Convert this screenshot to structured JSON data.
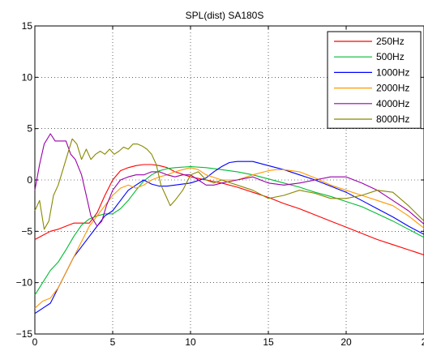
{
  "chart_data": {
    "type": "line",
    "title": "SPL(dist) SA180S",
    "xlabel": "",
    "ylabel": "",
    "xlim": [
      0,
      25
    ],
    "ylim": [
      -15,
      15
    ],
    "xticks": [
      "0",
      "5",
      "10",
      "15",
      "20",
      "2"
    ],
    "yticks": [
      "−15",
      "−10",
      "−5",
      "0",
      "5",
      "10",
      "15"
    ],
    "grid": true,
    "legend_position": "top-right",
    "series": [
      {
        "name": "250Hz",
        "color": "#ff0000",
        "x": [
          0,
          0.5,
          1,
          1.5,
          2,
          2.5,
          3,
          3.5,
          4,
          4.5,
          5,
          5.5,
          6,
          6.5,
          7,
          7.5,
          8,
          8.5,
          9,
          10,
          11,
          12,
          13,
          14,
          15,
          16,
          17,
          18,
          19,
          20,
          21,
          22,
          23,
          24,
          25
        ],
        "y": [
          -5.8,
          -5.4,
          -5.0,
          -4.8,
          -4.5,
          -4.2,
          -4.2,
          -4.2,
          -3.2,
          -1.5,
          0,
          0.9,
          1.2,
          1.4,
          1.5,
          1.5,
          1.4,
          1.2,
          0.8,
          0.3,
          0.0,
          -0.3,
          -0.7,
          -1.2,
          -1.7,
          -2.3,
          -2.8,
          -3.4,
          -4.0,
          -4.6,
          -5.2,
          -5.8,
          -6.3,
          -6.8,
          -7.3
        ]
      },
      {
        "name": "500Hz",
        "color": "#00bb33",
        "x": [
          0,
          0.5,
          1,
          1.5,
          2,
          2.5,
          3,
          3.5,
          4,
          4.5,
          5,
          5.5,
          6,
          6.5,
          7,
          7.5,
          8,
          8.5,
          9,
          10,
          11,
          12,
          13,
          14,
          15,
          16,
          17,
          18,
          19,
          20,
          21,
          22,
          23,
          24,
          25
        ],
        "y": [
          -11.2,
          -10.0,
          -8.8,
          -8.0,
          -6.8,
          -5.5,
          -4.4,
          -3.8,
          -3.5,
          -3.3,
          -3.3,
          -2.8,
          -2.0,
          -1.0,
          -0.1,
          0.5,
          0.9,
          1.1,
          1.2,
          1.3,
          1.2,
          1.0,
          0.8,
          0.5,
          0.1,
          -0.3,
          -0.7,
          -1.2,
          -1.6,
          -2.1,
          -2.6,
          -3.3,
          -4.0,
          -4.8,
          -5.6
        ]
      },
      {
        "name": "1000Hz",
        "color": "#0000ff",
        "x": [
          0,
          0.5,
          1,
          1.5,
          2,
          2.5,
          3,
          3.5,
          4,
          4.5,
          5,
          5.5,
          6,
          6.5,
          7,
          7.5,
          8,
          8.5,
          9,
          10,
          11,
          11.5,
          12,
          12.5,
          13,
          13.5,
          14,
          15,
          16,
          17,
          18,
          19,
          20,
          21,
          22,
          23,
          24,
          25
        ],
        "y": [
          -13.0,
          -12.5,
          -12.0,
          -10.5,
          -9.0,
          -7.5,
          -6.5,
          -5.5,
          -4.5,
          -3.5,
          -3.0,
          -2.0,
          -1.0,
          -0.5,
          0.0,
          -0.4,
          -0.6,
          -0.6,
          -0.5,
          -0.3,
          0.2,
          0.8,
          1.3,
          1.7,
          1.8,
          1.8,
          1.8,
          1.4,
          1.0,
          0.5,
          0.0,
          -0.6,
          -1.2,
          -2.0,
          -2.8,
          -3.6,
          -4.5,
          -5.3
        ]
      },
      {
        "name": "2000Hz",
        "color": "#ff9900",
        "x": [
          0,
          0.5,
          1,
          1.5,
          2,
          2.5,
          3,
          3.5,
          4,
          4.5,
          5,
          5.5,
          6,
          6.5,
          7,
          7.5,
          8,
          8.5,
          9,
          9.5,
          10,
          10.5,
          11,
          12,
          13,
          14,
          15,
          15.5,
          16,
          17,
          18,
          19,
          20,
          21,
          22,
          23,
          24,
          25
        ],
        "y": [
          -12.5,
          -11.8,
          -11.5,
          -10.5,
          -9.0,
          -7.5,
          -6.0,
          -4.5,
          -3.5,
          -2.5,
          -1.5,
          -0.8,
          -0.5,
          -0.8,
          -0.5,
          0.0,
          0.3,
          0.5,
          0.8,
          1.0,
          1.2,
          1.0,
          0.5,
          0.0,
          0.0,
          0.5,
          0.9,
          1.0,
          1.0,
          0.8,
          0.2,
          -0.5,
          -1.0,
          -1.5,
          -2.0,
          -2.5,
          -3.5,
          -4.7
        ]
      },
      {
        "name": "4000Hz",
        "color": "#9900aa",
        "x": [
          0,
          0.3,
          0.6,
          1,
          1.3,
          1.6,
          2,
          2.3,
          2.6,
          3,
          3.3,
          3.6,
          4,
          4.3,
          4.6,
          5,
          5.5,
          6,
          6.5,
          7,
          7.5,
          8,
          8.5,
          9,
          9.5,
          10,
          10.5,
          11,
          11.5,
          12,
          13,
          14,
          15,
          16,
          17,
          18,
          19,
          20,
          21,
          22,
          23,
          24,
          25
        ],
        "y": [
          -1.0,
          1.5,
          3.5,
          4.5,
          3.8,
          3.8,
          3.8,
          2.5,
          2.0,
          0.5,
          -1.5,
          -3.5,
          -4.5,
          -4.0,
          -2.5,
          -1.0,
          0.0,
          0.3,
          0.5,
          0.5,
          0.8,
          0.8,
          0.5,
          0.3,
          0.5,
          0.5,
          0.0,
          -0.5,
          -0.5,
          -0.3,
          0.0,
          0.3,
          -0.3,
          -0.5,
          -0.3,
          0.0,
          0.3,
          0.3,
          -0.3,
          -1.0,
          -2.0,
          -3.0,
          -4.3
        ]
      },
      {
        "name": "8000Hz",
        "color": "#888800",
        "x": [
          0,
          0.3,
          0.6,
          0.9,
          1.2,
          1.5,
          1.8,
          2.1,
          2.4,
          2.7,
          3.0,
          3.3,
          3.6,
          3.9,
          4.2,
          4.5,
          4.8,
          5.1,
          5.4,
          5.7,
          6.0,
          6.3,
          6.6,
          6.9,
          7.2,
          7.5,
          7.8,
          8.1,
          8.4,
          8.7,
          9.0,
          9.5,
          10,
          10.5,
          11,
          11.5,
          12,
          13,
          14,
          15,
          16,
          17,
          18,
          19,
          20,
          21,
          22,
          23,
          24,
          25
        ],
        "y": [
          -3.0,
          -2.0,
          -4.8,
          -4.0,
          -1.5,
          -0.5,
          1.0,
          2.5,
          4.0,
          3.5,
          2.0,
          3.0,
          2.0,
          2.5,
          2.8,
          2.5,
          3.0,
          2.5,
          2.8,
          3.2,
          3.0,
          3.5,
          3.5,
          3.3,
          3.0,
          2.5,
          1.5,
          -0.5,
          -1.5,
          -2.5,
          -2.0,
          -1.0,
          0.5,
          0.8,
          0.0,
          -0.3,
          0.0,
          -0.5,
          -1.0,
          -1.8,
          -1.5,
          -1.0,
          -1.3,
          -1.8,
          -1.8,
          -1.5,
          -1.0,
          -1.2,
          -2.5,
          -4.0
        ]
      }
    ]
  }
}
